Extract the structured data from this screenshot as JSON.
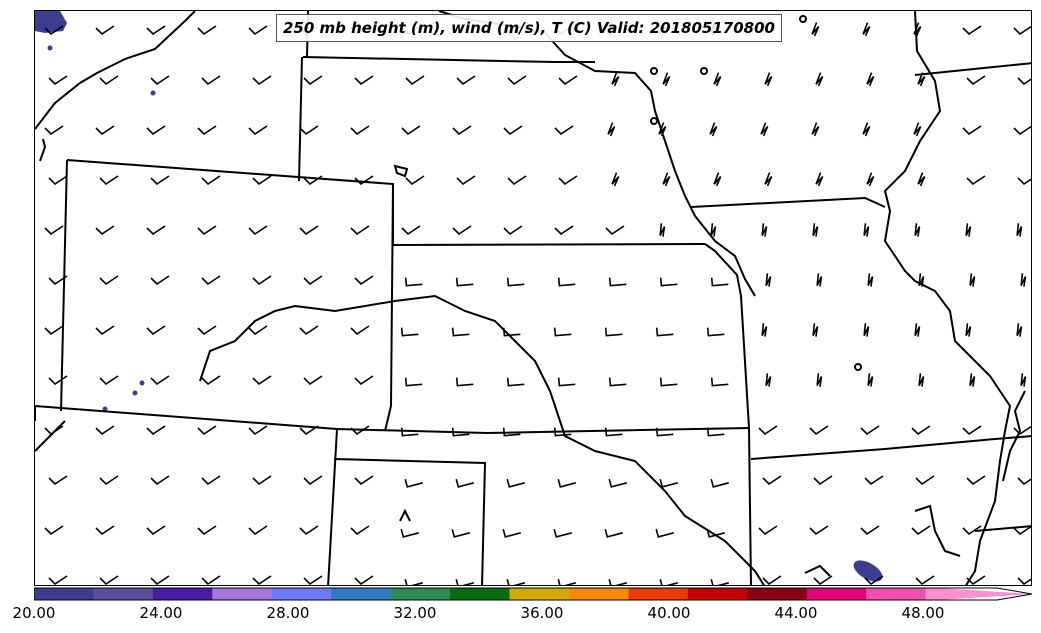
{
  "title": "250 mb height (m), wind (m/s), T (C) Valid: 201805170800",
  "colorbar": {
    "colors": [
      "#3d3d8f",
      "#5a4f9c",
      "#4b1aa6",
      "#a874e0",
      "#6f7cf7",
      "#2f7cc4",
      "#2e8b57",
      "#0b6b12",
      "#d4aa00",
      "#ff8800",
      "#ee3a00",
      "#c50000",
      "#8b0013",
      "#e6007a",
      "#f050b0",
      "#ff90d0"
    ],
    "tick_labels": [
      "20.00",
      "24.00",
      "28.00",
      "32.00",
      "36.00",
      "40.00",
      "44.00",
      "48.00"
    ],
    "min": 20,
    "max": 52,
    "units_note": "",
    "extend": "max"
  },
  "map": {
    "region": "Central United States",
    "barb_color": "#000000",
    "boundary_color": "#000000",
    "shaded_color": "#3d3d8f",
    "barb_spacing_hint": "regular grid"
  }
}
